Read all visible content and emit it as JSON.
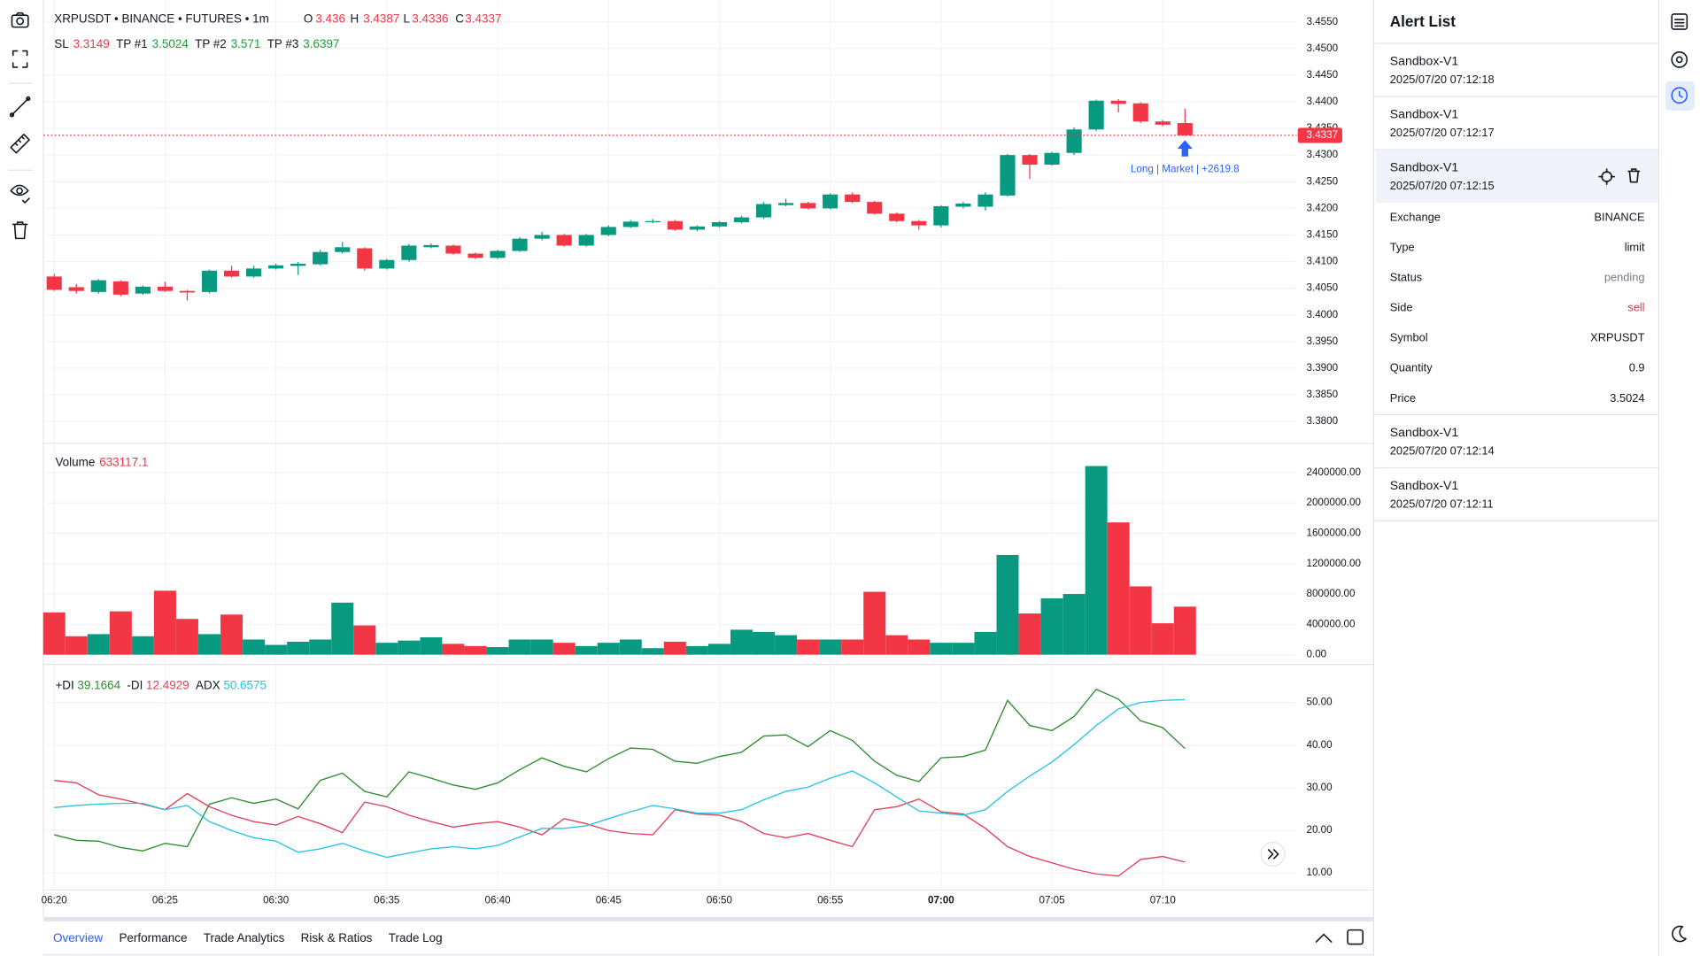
{
  "chart_data": [
    {
      "type": "candlestick",
      "title": "XRPUSDT • BINANCE • FUTURES • 1m",
      "ohlc_labels": [
        "O",
        "H",
        "L",
        "C"
      ],
      "levels": [
        {
          "name": "SL",
          "value": 3.3149,
          "color": "#f23645"
        },
        {
          "name": "TP #1",
          "value": 3.5024,
          "color": "#1e9e3a"
        },
        {
          "name": "TP #2",
          "value": 3.571,
          "color": "#1e9e3a"
        },
        {
          "name": "TP #3",
          "value": 3.6397,
          "color": "#1e9e3a"
        }
      ],
      "annotation": "Long | Market | +2619.8",
      "categories": [
        "06:20",
        null,
        null,
        null,
        null,
        "06:25",
        null,
        null,
        null,
        null,
        "06:30",
        null,
        null,
        null,
        null,
        "06:35",
        null,
        null,
        null,
        null,
        "06:40",
        null,
        null,
        null,
        null,
        "06:45",
        null,
        null,
        null,
        null,
        "06:50",
        null,
        null,
        null,
        null,
        "06:55",
        null,
        null,
        null,
        null,
        "07:00",
        null,
        null,
        null,
        null,
        "07:05",
        null,
        null,
        null,
        null,
        "07:10",
        null
      ],
      "open": [
        3.4072,
        3.4052,
        3.4043,
        3.4063,
        3.404,
        3.4053,
        3.4045,
        3.4043,
        3.4083,
        3.4072,
        3.4087,
        3.4092,
        3.4095,
        3.4118,
        3.4125,
        3.4087,
        3.4103,
        3.4127,
        3.413,
        3.4115,
        3.4107,
        3.412,
        3.4143,
        3.415,
        3.413,
        3.415,
        3.4165,
        3.4174,
        3.4176,
        3.416,
        3.4166,
        3.4174,
        3.4183,
        3.4206,
        3.421,
        3.42,
        3.4226,
        3.4212,
        3.419,
        3.4176,
        3.4168,
        3.4203,
        3.4203,
        3.4224,
        3.43,
        3.4282,
        3.4304,
        3.4348,
        3.4402,
        3.4397,
        3.4363,
        3.436
      ],
      "high": [
        3.4077,
        3.4058,
        3.4067,
        3.4065,
        3.4055,
        3.4062,
        3.4047,
        3.4085,
        3.4092,
        3.4092,
        3.4096,
        3.4099,
        3.4122,
        3.4137,
        3.4127,
        3.4105,
        3.4133,
        3.4134,
        3.4132,
        3.4117,
        3.4122,
        3.4146,
        3.4156,
        3.4152,
        3.4152,
        3.4168,
        3.4178,
        3.418,
        3.4178,
        3.4168,
        3.4176,
        3.4186,
        3.4212,
        3.4218,
        3.4212,
        3.4228,
        3.423,
        3.4214,
        3.4192,
        3.4178,
        3.4206,
        3.4212,
        3.423,
        3.4302,
        3.4302,
        3.4306,
        3.4352,
        3.4404,
        3.4405,
        3.4399,
        3.4366,
        3.4387
      ],
      "low": [
        3.4045,
        3.404,
        3.404,
        3.4035,
        3.4038,
        3.4043,
        3.4027,
        3.404,
        3.407,
        3.407,
        3.4085,
        3.4075,
        3.4093,
        3.4115,
        3.4083,
        3.4085,
        3.41,
        3.4125,
        3.4113,
        3.4105,
        3.4105,
        3.4118,
        3.414,
        3.4128,
        3.4128,
        3.4148,
        3.4163,
        3.4172,
        3.4158,
        3.4157,
        3.4164,
        3.4172,
        3.418,
        3.4204,
        3.4198,
        3.4198,
        3.421,
        3.4188,
        3.4174,
        3.416,
        3.4164,
        3.42,
        3.4196,
        3.4222,
        3.4255,
        3.428,
        3.43,
        3.4345,
        3.438,
        3.436,
        3.4354,
        3.4336
      ],
      "close": [
        3.4047,
        3.4045,
        3.4065,
        3.4038,
        3.4053,
        3.4045,
        3.4042,
        3.4083,
        3.4072,
        3.4087,
        3.4093,
        3.4096,
        3.4118,
        3.4127,
        3.4087,
        3.4103,
        3.413,
        3.4131,
        3.4115,
        3.4107,
        3.412,
        3.4143,
        3.415,
        3.413,
        3.415,
        3.4165,
        3.4175,
        3.4176,
        3.416,
        3.4166,
        3.4174,
        3.4183,
        3.4208,
        3.421,
        3.42,
        3.4226,
        3.4212,
        3.419,
        3.4176,
        3.4168,
        3.4204,
        3.4209,
        3.4226,
        3.43,
        3.4282,
        3.4304,
        3.4348,
        3.4402,
        3.4396,
        3.4363,
        3.4357,
        3.4337
      ],
      "up_color": "#089981",
      "down_color": "#f23645",
      "current_price_line": true,
      "grid": true,
      "ylim": [
        3.3761,
        3.4591
      ],
      "yticks": [
        {
          "value": 3.38,
          "label": "3.3800"
        },
        {
          "value": 3.385,
          "label": "3.3850"
        },
        {
          "value": 3.39,
          "label": "3.3900"
        },
        {
          "value": 3.395,
          "label": "3.3950"
        },
        {
          "value": 3.4,
          "label": "3.4000"
        },
        {
          "value": 3.405,
          "label": "3.4050"
        },
        {
          "value": 3.41,
          "label": "3.4100"
        },
        {
          "value": 3.415,
          "label": "3.4150"
        },
        {
          "value": 3.42,
          "label": "3.4200"
        },
        {
          "value": 3.425,
          "label": "3.4250"
        },
        {
          "value": 3.43,
          "label": "3.4300"
        },
        {
          "value": 3.435,
          "label": "3.4350"
        },
        {
          "value": 3.44,
          "label": "3.4400"
        },
        {
          "value": 3.445,
          "label": "3.4450"
        },
        {
          "value": 3.45,
          "label": "3.4500"
        },
        {
          "value": 3.455,
          "label": "3.4550"
        }
      ]
    },
    {
      "type": "bar",
      "name": "Volume",
      "up_color": "#089981",
      "down_color": "#f23645",
      "grid": true,
      "values": [
        557000,
        243000,
        271000,
        571000,
        243000,
        843000,
        471000,
        271000,
        529000,
        200000,
        129000,
        171000,
        200000,
        686000,
        386000,
        157000,
        186000,
        229000,
        143000,
        114000,
        100000,
        200000,
        200000,
        157000,
        114000,
        157000,
        200000,
        86000,
        171000,
        114000,
        143000,
        329000,
        300000,
        257000,
        200000,
        200000,
        200000,
        829000,
        257000,
        200000,
        157000,
        157000,
        300000,
        1314000,
        543000,
        743000,
        800000,
        2486000,
        1743000,
        900000,
        414000,
        633117.1
      ],
      "ylim": [
        -114000,
        2771000
      ],
      "yticks": [
        {
          "value": 0,
          "label": "0.00"
        },
        {
          "value": 400000,
          "label": "400000.00"
        },
        {
          "value": 800000,
          "label": "800000.00"
        },
        {
          "value": 1200000,
          "label": "1200000.00"
        },
        {
          "value": 1600000,
          "label": "1600000.00"
        },
        {
          "value": 2000000,
          "label": "2000000.00"
        },
        {
          "value": 2400000,
          "label": "2400000.00"
        }
      ]
    },
    {
      "type": "line",
      "grid": true,
      "series": [
        {
          "name": "+DI",
          "color": "#2e8b2e",
          "values": [
            18.9,
            17.6,
            17.4,
            15.9,
            15.1,
            16.9,
            16.1,
            26.1,
            27.6,
            26.3,
            27.3,
            25.0,
            31.7,
            33.4,
            29.1,
            27.8,
            33.7,
            32.2,
            30.6,
            29.6,
            31.1,
            34.2,
            37.0,
            35.0,
            33.7,
            36.8,
            39.3,
            39.0,
            36.2,
            35.7,
            37.3,
            38.3,
            42.1,
            42.4,
            39.6,
            43.4,
            41.1,
            36.2,
            32.9,
            31.4,
            37.0,
            37.3,
            38.8,
            50.5,
            44.6,
            43.4,
            46.7,
            53.1,
            50.8,
            45.7,
            44.1,
            39.1664
          ]
        },
        {
          "name": "-DI",
          "color": "#e0405a",
          "values": [
            31.7,
            31.1,
            28.3,
            27.3,
            26.1,
            24.8,
            28.6,
            25.5,
            23.5,
            22.0,
            21.2,
            23.2,
            21.5,
            19.4,
            26.6,
            25.5,
            23.5,
            22.0,
            20.7,
            21.5,
            22.0,
            20.7,
            18.9,
            22.7,
            21.5,
            19.9,
            19.2,
            18.9,
            24.8,
            23.8,
            23.5,
            22.0,
            19.2,
            18.2,
            19.2,
            17.6,
            16.1,
            24.8,
            25.5,
            27.3,
            24.3,
            23.8,
            20.4,
            16.1,
            13.8,
            12.3,
            10.8,
            9.7,
            9.2,
            13.1,
            13.8,
            12.4929
          ]
        },
        {
          "name": "ADX",
          "color": "#29c3e5",
          "values": [
            25.3,
            25.8,
            26.1,
            26.3,
            26.3,
            24.8,
            25.8,
            22.0,
            19.9,
            18.2,
            17.4,
            14.8,
            15.6,
            16.9,
            15.1,
            13.6,
            14.6,
            15.6,
            16.1,
            15.6,
            16.4,
            18.4,
            20.4,
            20.4,
            21.0,
            22.7,
            24.3,
            25.8,
            25.0,
            24.0,
            24.0,
            24.8,
            27.1,
            29.1,
            30.1,
            32.2,
            33.9,
            31.1,
            27.8,
            24.5,
            24.0,
            23.5,
            24.8,
            29.1,
            32.7,
            36.0,
            40.1,
            44.6,
            48.5,
            50.0,
            50.5,
            50.6575
          ]
        }
      ],
      "ylim": [
        6.2,
        58.7
      ],
      "yticks": [
        {
          "value": 10,
          "label": "10.00"
        },
        {
          "value": 20,
          "label": "20.00"
        },
        {
          "value": 30,
          "label": "30.00"
        },
        {
          "value": 40,
          "label": "40.00"
        },
        {
          "value": 50,
          "label": "50.00"
        }
      ]
    }
  ],
  "alert_list": {
    "title": "Alert List",
    "items": [
      {
        "name": "Sandbox-V1",
        "time": "2025/07/20 07:12:18"
      },
      {
        "name": "Sandbox-V1",
        "time": "2025/07/20 07:12:17"
      },
      {
        "name": "Sandbox-V1",
        "time": "2025/07/20 07:12:15",
        "details": [
          {
            "label": "Exchange",
            "value": "BINANCE"
          },
          {
            "label": "Type",
            "value": "limit"
          },
          {
            "label": "Status",
            "value": "pending"
          },
          {
            "label": "Side",
            "value": "sell"
          },
          {
            "label": "Symbol",
            "value": "XRPUSDT"
          },
          {
            "label": "Quantity",
            "value": 0.9
          },
          {
            "label": "Price",
            "value": 3.5024
          }
        ]
      },
      {
        "name": "Sandbox-V1",
        "time": "2025/07/20 07:12:14"
      },
      {
        "name": "Sandbox-V1",
        "time": "2025/07/20 07:12:11"
      }
    ]
  },
  "tabs": [
    "Overview",
    "Performance",
    "Trade Analytics",
    "Risk & Ratios",
    "Trade Log"
  ]
}
